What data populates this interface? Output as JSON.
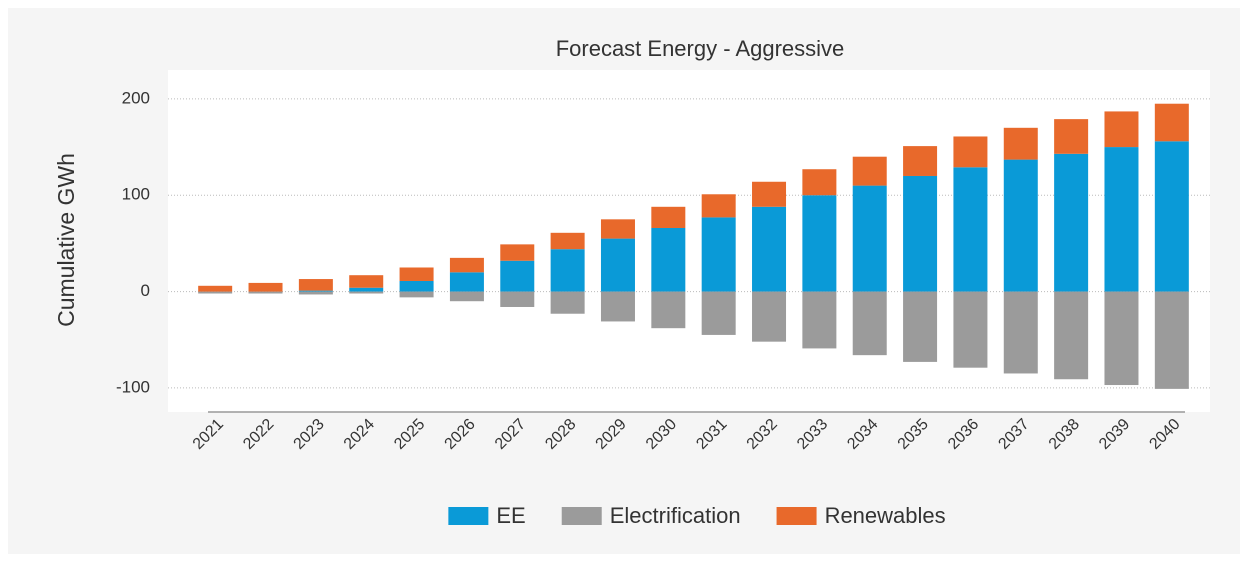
{
  "chart_data": {
    "type": "stacked_bar",
    "title": "Forecast Energy - Aggressive",
    "y_label": "Cumulative GWh",
    "categories": [
      "2021",
      "2022",
      "2023",
      "2024",
      "2025",
      "2026",
      "2027",
      "2028",
      "2029",
      "2030",
      "2031",
      "2032",
      "2033",
      "2034",
      "2035",
      "2036",
      "2037",
      "2038",
      "2039",
      "2040"
    ],
    "series": [
      {
        "name": "EE",
        "color": "#0a9ad7",
        "values": [
          0,
          0,
          1,
          4,
          11,
          20,
          32,
          44,
          55,
          66,
          77,
          88,
          100,
          110,
          120,
          129,
          137,
          143,
          150,
          156
        ]
      },
      {
        "name": "Electrification",
        "color": "#9b9b9b",
        "values": [
          -2,
          -2,
          -3,
          -2,
          -6,
          -10,
          -16,
          -23,
          -31,
          -38,
          -45,
          -52,
          -59,
          -66,
          -73,
          -79,
          -85,
          -91,
          -97,
          -101
        ]
      },
      {
        "name": "Renewables",
        "color": "#e8692b",
        "values": [
          6,
          9,
          12,
          13,
          14,
          15,
          17,
          17,
          20,
          22,
          24,
          26,
          27,
          30,
          31,
          32,
          33,
          36,
          37,
          39
        ]
      }
    ],
    "ylim": [
      -125,
      230
    ],
    "yticks": [
      -100,
      0,
      100,
      200
    ],
    "grid": true,
    "legend": "bottom"
  }
}
